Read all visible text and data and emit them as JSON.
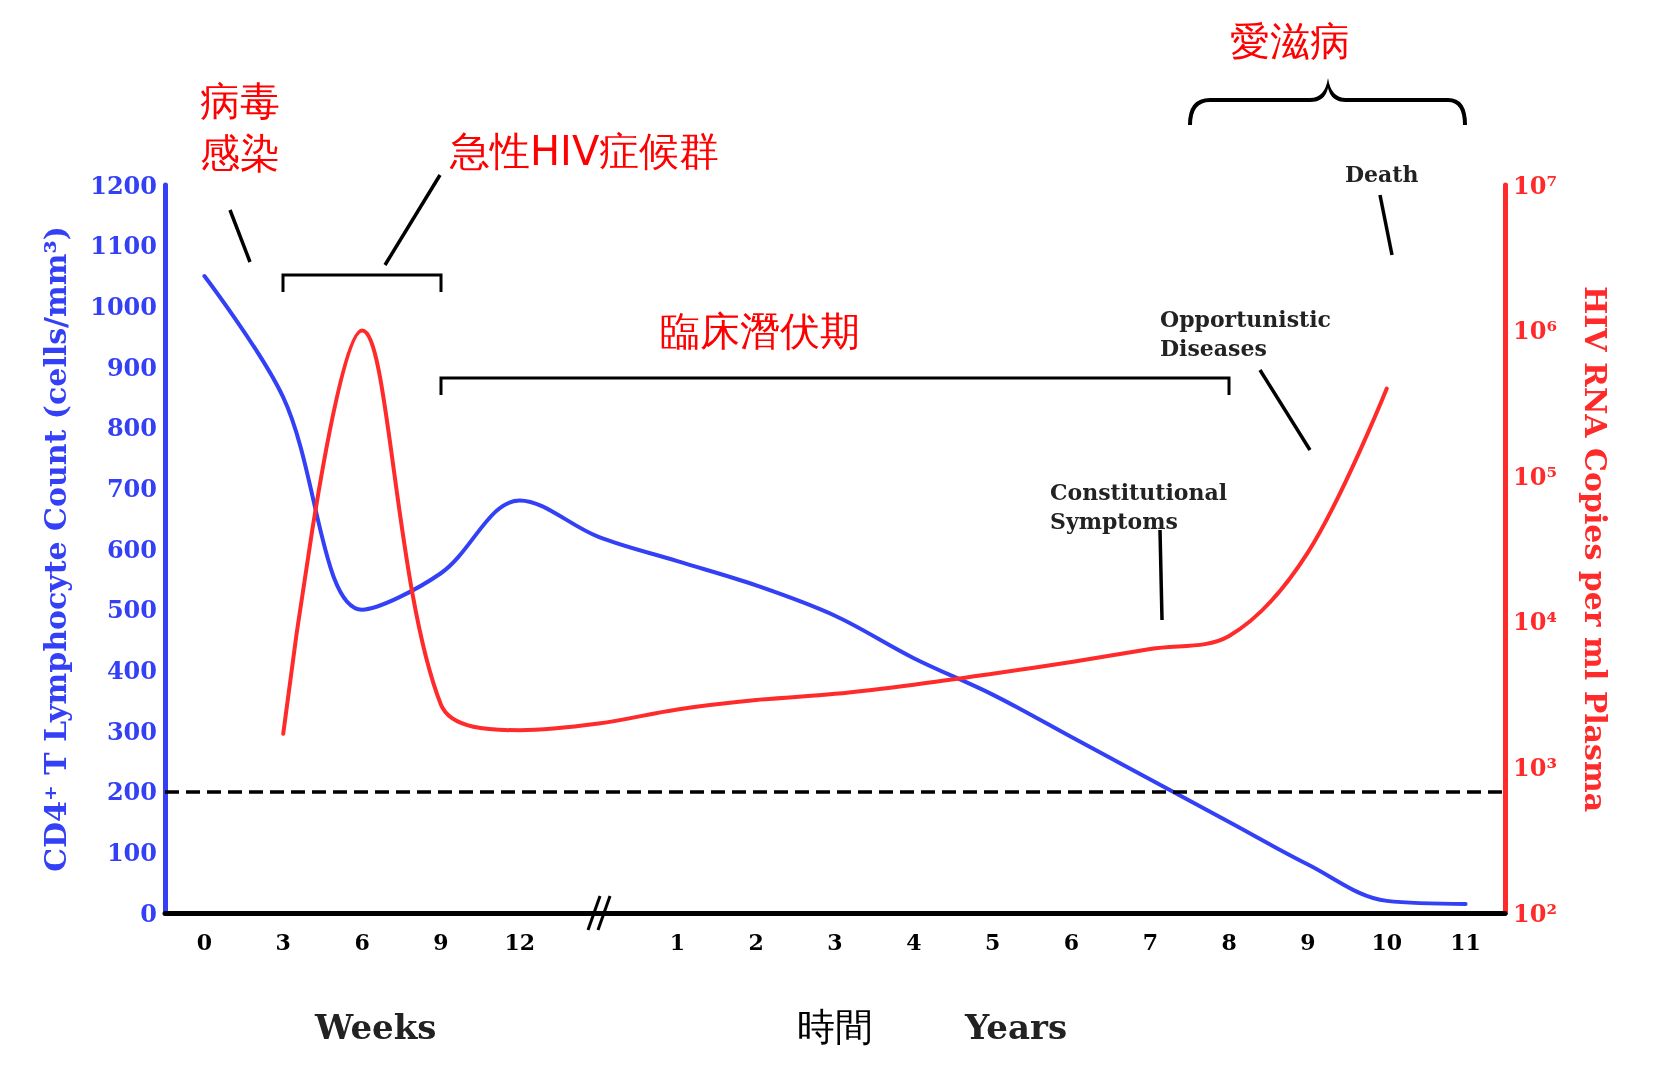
{
  "chart_data": {
    "type": "line",
    "categories": [
      "0",
      "3",
      "6",
      "9",
      "12",
      null,
      "1",
      "2",
      "3",
      "4",
      "5",
      "6",
      "7",
      "8",
      "9",
      "10",
      "11"
    ],
    "xlabel": "時間",
    "ylabel": "CD4⁺ T Lymphocyte Count (cells/mm³)",
    "y2label": "HIV RNA Copies per ml Plasma",
    "series": [
      {
        "color": "#3340f5",
        "values": [
          1050,
          850,
          500,
          560,
          680,
          620,
          580,
          540,
          490,
          420,
          360,
          290,
          220,
          150,
          80,
          20,
          15
        ]
      },
      {
        "color": "#ff2a2a",
        "axis": "y2",
        "values": [
          null,
          1700,
          1000000,
          2700,
          1800,
          2000,
          2500,
          2900,
          3200,
          3700,
          4400,
          5300,
          6500,
          8000,
          30000,
          400000,
          null
        ]
      }
    ],
    "ylim": [
      0,
      1200
    ],
    "yticks": [
      0,
      100,
      200,
      300,
      400,
      500,
      600,
      700,
      800,
      900,
      1000,
      1100,
      1200
    ],
    "y2lim": [
      100,
      10000000
    ],
    "y2ticks": [
      {
        "value": 100,
        "label": "10²"
      },
      {
        "value": 1000,
        "label": "10³"
      },
      {
        "value": 10000,
        "label": "10⁴"
      },
      {
        "value": 100000,
        "label": "10⁵"
      },
      {
        "value": 1000000,
        "label": "10⁶"
      },
      {
        "value": 10000000,
        "label": "10⁷"
      }
    ],
    "log": "y2",
    "ref_lines": [
      {
        "axis": "y",
        "value": 200,
        "color": "#000000",
        "line_style": "dashed"
      }
    ],
    "annotations": [
      "病毒感染",
      "急性HIV症候群",
      "臨床潛伏期",
      "愛滋病",
      "Death",
      "Opportunistic\nDiseases",
      "Constitutional\nSymptoms",
      "Weeks",
      "Years"
    ],
    "grid": false,
    "marker": "none",
    "line_style": "solid"
  }
}
